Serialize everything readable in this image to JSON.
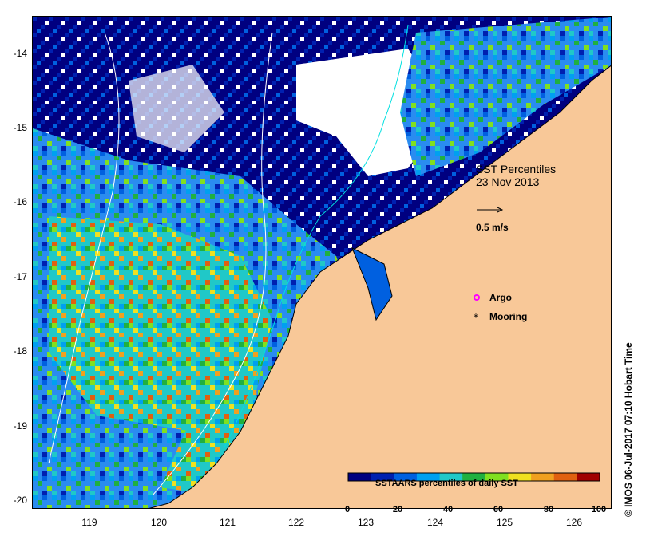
{
  "map": {
    "title_line1": "SST Percentiles",
    "title_line2": "23 Nov 2013",
    "vector_scale_label": "0.5 m/s",
    "legend": [
      {
        "label": "Argo",
        "marker": "magenta-circle",
        "color": "#ff00ff"
      },
      {
        "label": "Mooring",
        "marker": "black-asterisk",
        "color": "#000000"
      }
    ],
    "credit": "© IMOS 06-Jul-2017 07:10 Hobart Time",
    "colorbar": {
      "label": "SSTAARS percentiles of daily SST",
      "ticks": [
        "0",
        "20",
        "40",
        "60",
        "80",
        "100"
      ],
      "colors": [
        "#000080",
        "#0020b0",
        "#0060e0",
        "#00a0f0",
        "#20c8c8",
        "#20b040",
        "#80e020",
        "#f0e020",
        "#f0a020",
        "#e06010",
        "#a00000"
      ]
    },
    "land_color": "#f8c898",
    "x_ticks": [
      "119",
      "120",
      "121",
      "122",
      "123",
      "124",
      "125",
      "126"
    ],
    "y_ticks": [
      "-14",
      "-15",
      "-16",
      "-17",
      "-18",
      "-19",
      "-20"
    ]
  }
}
